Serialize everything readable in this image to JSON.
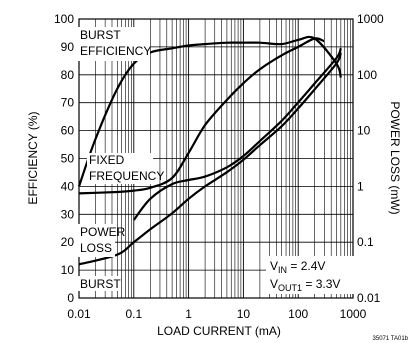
{
  "chart_data": {
    "type": "line",
    "xlabel": "LOAD CURRENT (mA)",
    "ylabel_left": "EFFICIENCY (%)",
    "ylabel_right": "POWER LOSS (mW)",
    "x_scale": "log",
    "x_range": [
      0.01,
      1000
    ],
    "y_left_range": [
      0,
      100
    ],
    "y_right_scale": "log",
    "y_right_range": [
      0.01,
      1000
    ],
    "grid": true,
    "x_ticks": [
      "0.01",
      "0.1",
      "1",
      "10",
      "100",
      "1000"
    ],
    "y_left_ticks": [
      "0",
      "10",
      "20",
      "30",
      "40",
      "50",
      "60",
      "70",
      "80",
      "90",
      "100"
    ],
    "y_right_ticks": [
      "0.01",
      "0.1",
      "1",
      "10",
      "100",
      "1000"
    ],
    "annotations": {
      "burst_efficiency_line1": "BURST",
      "burst_efficiency_line2": "EFFICIENCY",
      "fixed_frequency_line1": "FIXED",
      "fixed_frequency_line2": "FREQUENCY",
      "power_loss_line1": "POWER",
      "power_loss_line2": "LOSS",
      "burst": "BURST",
      "vin_main": "V",
      "vin_sub": "IN",
      "vin_value": " = 2.4V",
      "vout_main": "V",
      "vout_sub": "OUT1",
      "vout_value": " = 3.3V",
      "figure_ref": "35071 TA01b"
    },
    "series": [
      {
        "axis": "left",
        "x": [
          0.01,
          0.02,
          0.05,
          0.1,
          0.2,
          0.5,
          1,
          2,
          5,
          10,
          20,
          50,
          100,
          200,
          500,
          600
        ],
        "y": [
          40,
          57,
          75,
          84,
          88,
          89.5,
          90.5,
          91,
          91.5,
          91.5,
          91.5,
          91,
          92.5,
          93,
          84,
          79
        ]
      },
      {
        "axis": "left",
        "x": [
          0.01,
          0.05,
          0.1,
          0.2,
          0.5,
          1,
          2,
          5,
          10,
          20,
          50,
          100,
          200,
          300
        ],
        "y": [
          37.5,
          38,
          38.5,
          39.5,
          43,
          52,
          62,
          71,
          77,
          82,
          87,
          90,
          93,
          92
        ]
      },
      {
        "axis": "right",
        "x": [
          0.01,
          0.05,
          0.1,
          0.2,
          0.5,
          1,
          2,
          5,
          10,
          20,
          50,
          100,
          200,
          500,
          600
        ],
        "y": [
          0.04,
          0.06,
          0.1,
          0.17,
          0.33,
          0.6,
          1.0,
          1.8,
          3.0,
          5.5,
          12,
          25,
          55,
          160,
          250
        ]
      },
      {
        "axis": "right",
        "x": [
          0.1,
          0.2,
          0.5,
          1,
          2,
          5,
          10,
          20,
          50,
          100,
          200,
          500,
          600
        ],
        "y": [
          0.25,
          0.6,
          1.1,
          1.3,
          1.5,
          2.2,
          3.5,
          6.5,
          15,
          32,
          70,
          200,
          300
        ]
      }
    ]
  }
}
